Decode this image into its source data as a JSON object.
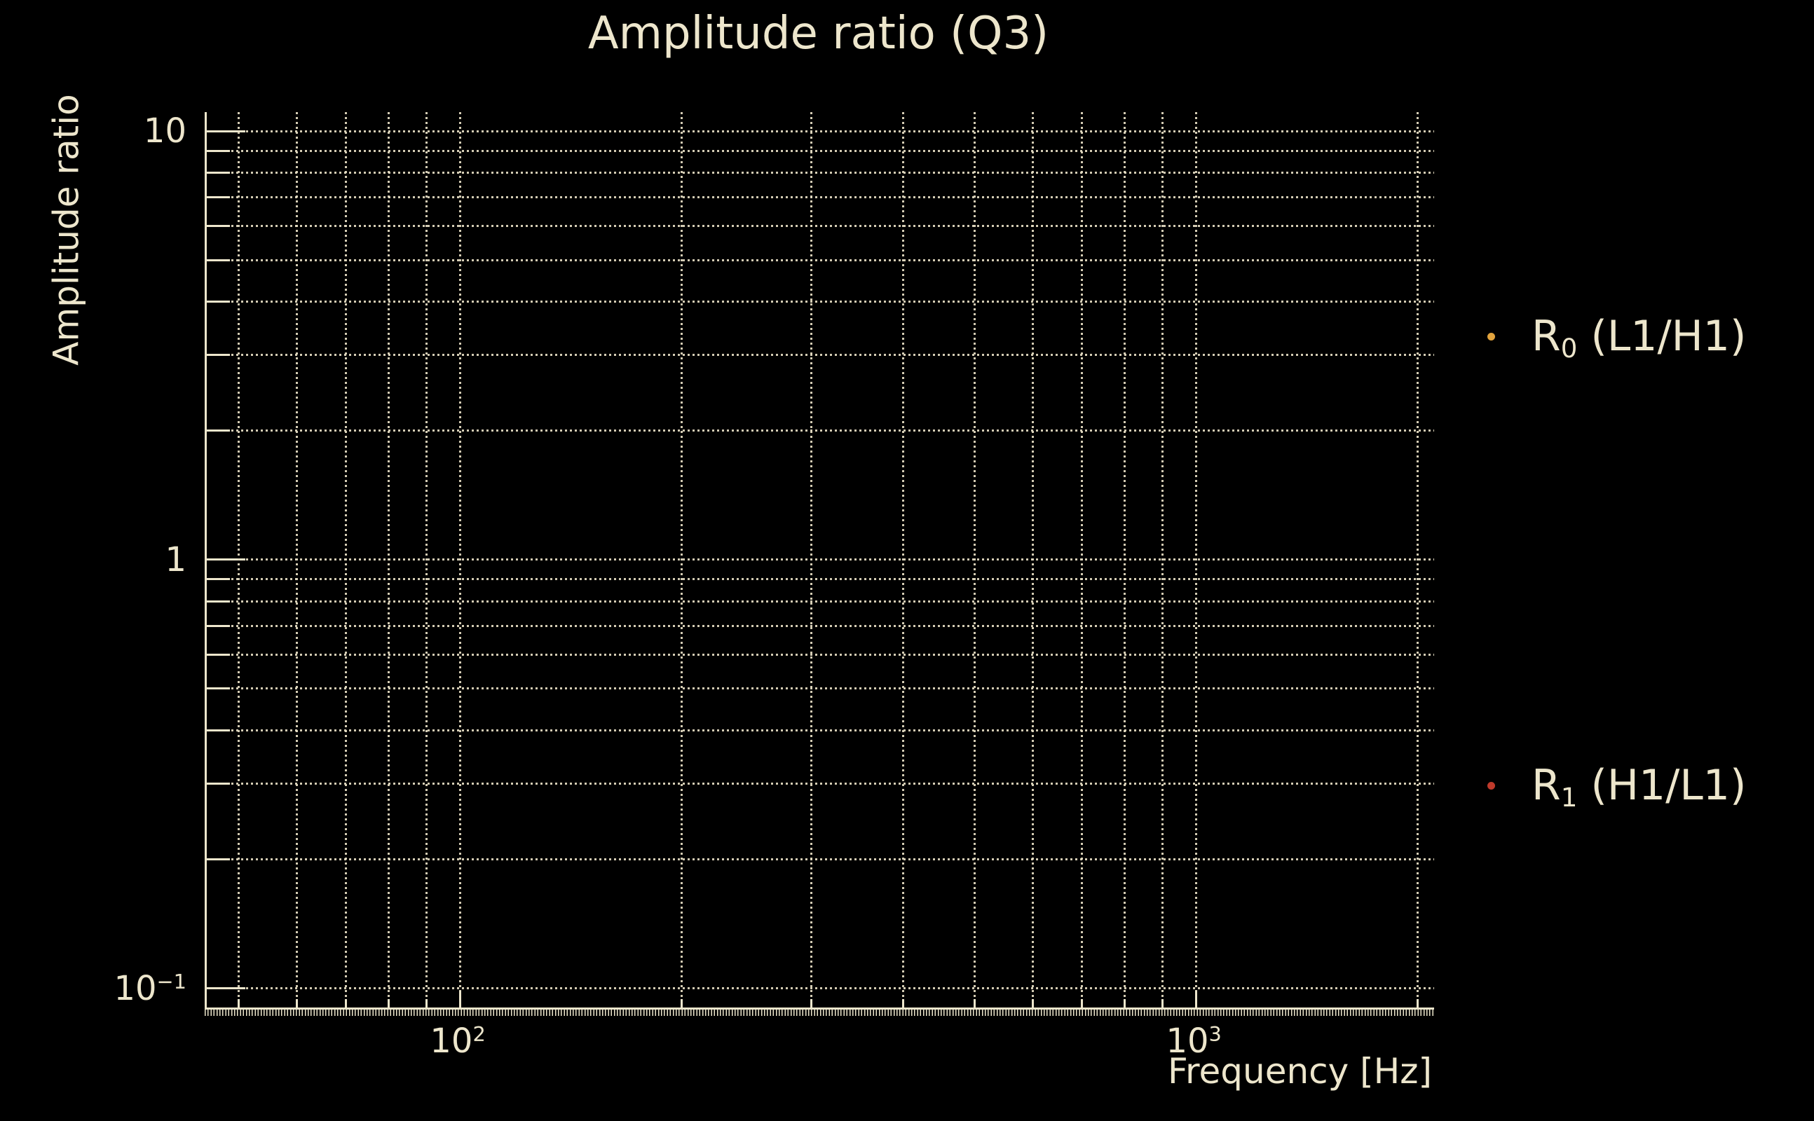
{
  "chart_data": {
    "type": "scatter",
    "title": "Amplitude ratio (Q3)",
    "xlabel": "Frequency [Hz]",
    "ylabel": "Amplitude ratio",
    "xscale": "log",
    "yscale": "log",
    "xlim": [
      45.3,
      2107
    ],
    "ylim": [
      0.0902,
      11.07
    ],
    "grid": "dotted",
    "x_major_ticks": [
      100,
      1000
    ],
    "x_minor_gridlines": [
      50,
      60,
      70,
      80,
      90,
      200,
      300,
      400,
      500,
      600,
      700,
      800,
      900,
      2000
    ],
    "y_major_ticks": [
      10,
      1,
      0.1
    ],
    "y_minor_gridlines": [
      9,
      8,
      7,
      6,
      5,
      4,
      3,
      2,
      0.9,
      0.8,
      0.7,
      0.6,
      0.5,
      0.4,
      0.3,
      0.2
    ],
    "legend_position": "outside right",
    "series": [
      {
        "name": "R0 (L1/H1)",
        "marker": "dot",
        "color": "#E2A33D",
        "points": []
      },
      {
        "name": "R1 (H1/L1)",
        "marker": "dot",
        "color": "#BF3A2B",
        "points": []
      }
    ]
  },
  "axes": {
    "y": {
      "label": "Amplitude ratio",
      "ticks": [
        {
          "base": "10",
          "sup": "",
          "value": 10
        },
        {
          "base": "1",
          "sup": "",
          "value": 1
        },
        {
          "base": "10",
          "sup": "−1",
          "value": 0.1
        }
      ]
    },
    "x": {
      "label": "Frequency [Hz]",
      "ticks": [
        {
          "base": "10",
          "sup": "2",
          "value": 100
        },
        {
          "base": "10",
          "sup": "3",
          "value": 1000
        }
      ]
    }
  },
  "legend": {
    "entries": [
      {
        "color": "#E2A33D",
        "label_main": "R",
        "label_sub": "0",
        "label_rest": " (L1/H1)"
      },
      {
        "color": "#BF3A2B",
        "label_main": "R",
        "label_sub": "1",
        "label_rest": " (H1/L1)"
      }
    ]
  },
  "colors": {
    "background": "#000000",
    "text": "#EDE6CC",
    "grid": "#E6DEC3"
  }
}
